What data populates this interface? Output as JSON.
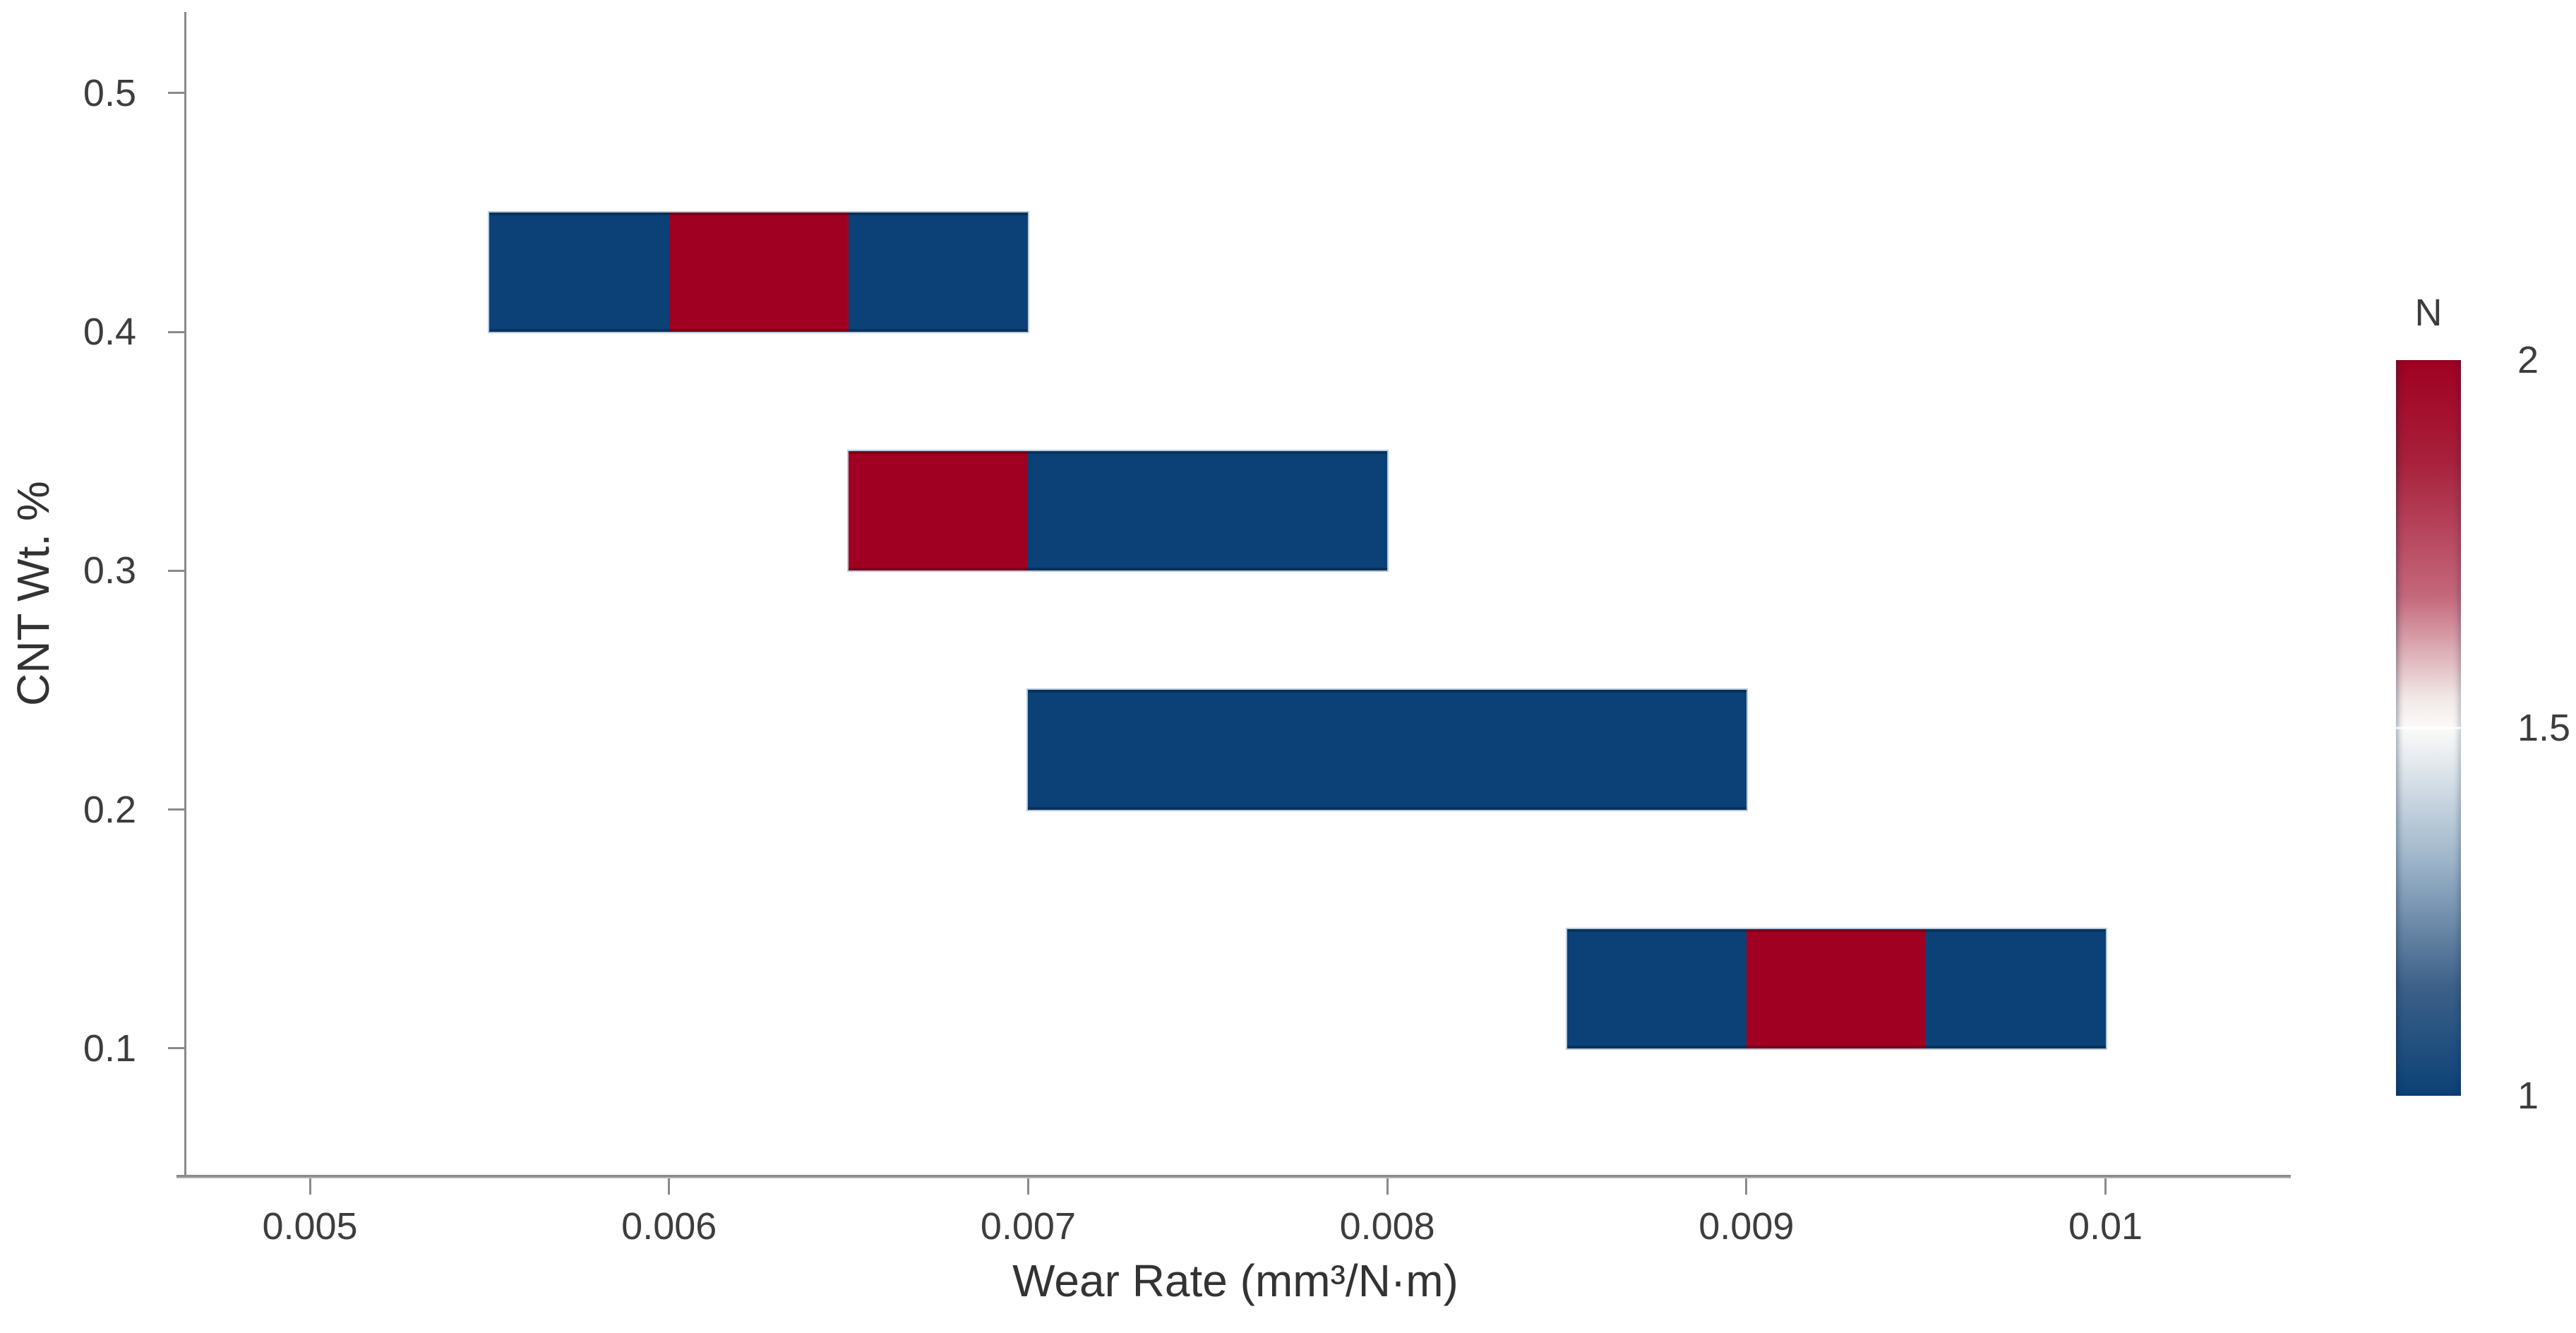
{
  "figure": {
    "background": "#FFFFFF"
  },
  "chart_data": {
    "type": "heatmap",
    "title": "",
    "xlabel": "Wear Rate (mm³/N·m)",
    "ylabel": "CNT Wt. %",
    "x_ticks": [
      0.005,
      0.006,
      0.007,
      0.008,
      0.009,
      0.01
    ],
    "x_tick_labels": [
      "0.005",
      "0.006",
      "0.007",
      "0.008",
      "0.009",
      "0.01"
    ],
    "y_ticks": [
      0.5,
      0.4,
      0.3,
      0.2,
      0.1
    ],
    "y_tick_labels": [
      "0.5",
      "0.4",
      "0.3",
      "0.2",
      "0.1"
    ],
    "xlim": [
      0.00465,
      0.01051
    ],
    "ylim": [
      0.047,
      0.534
    ],
    "x_bin_width": 0.0005,
    "y_bin_height": 0.05,
    "grid": false,
    "rows": [
      {
        "y0": 0.4,
        "y1": 0.45,
        "segments": [
          {
            "x0": 0.0055,
            "x1": 0.006,
            "n": 1
          },
          {
            "x0": 0.006,
            "x1": 0.0065,
            "n": 2
          },
          {
            "x0": 0.0065,
            "x1": 0.007,
            "n": 1
          }
        ]
      },
      {
        "y0": 0.3,
        "y1": 0.35,
        "segments": [
          {
            "x0": 0.0065,
            "x1": 0.007,
            "n": 2
          },
          {
            "x0": 0.007,
            "x1": 0.008,
            "n": 1
          }
        ]
      },
      {
        "y0": 0.2,
        "y1": 0.25,
        "segments": [
          {
            "x0": 0.007,
            "x1": 0.009,
            "n": 1
          }
        ]
      },
      {
        "y0": 0.1,
        "y1": 0.15,
        "segments": [
          {
            "x0": 0.0085,
            "x1": 0.009,
            "n": 1
          },
          {
            "x0": 0.009,
            "x1": 0.0095,
            "n": 2
          },
          {
            "x0": 0.0095,
            "x1": 0.01,
            "n": 1
          }
        ]
      }
    ],
    "colors": {
      "n1": "#0B4176",
      "n2": "#A00021",
      "axis_line": "#8A8A8A",
      "text": "#3D3D3D"
    },
    "colorbar": {
      "title": "N",
      "min": 1,
      "max": 2,
      "ticks": [
        2,
        1.5,
        1
      ],
      "tick_labels": [
        "2",
        "1.5",
        "1"
      ],
      "position": "right",
      "gradient_stops": [
        [
          "#A00021",
          "0%"
        ],
        [
          "#A8213C",
          "14%"
        ],
        [
          "#C4677B",
          "32%"
        ],
        [
          "#F2E9E7",
          "46%"
        ],
        [
          "#FBFAF9",
          "50%"
        ],
        [
          "#E7ECF0",
          "54%"
        ],
        [
          "#9DB5CA",
          "68%"
        ],
        [
          "#3D6189",
          "85%"
        ],
        [
          "#0B4176",
          "100%"
        ]
      ]
    }
  }
}
